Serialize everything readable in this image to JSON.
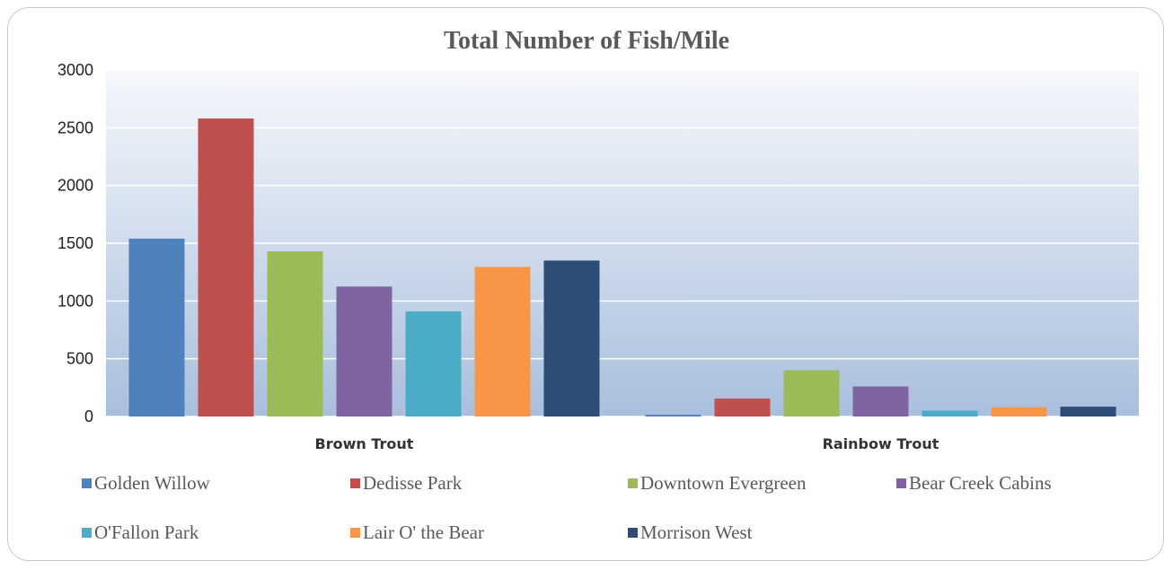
{
  "chart_data": {
    "type": "bar",
    "title": "Total Number of Fish/Mile",
    "xlabel": "",
    "ylabel": "",
    "categories": [
      "Brown Trout",
      "Rainbow Trout"
    ],
    "ylim": [
      0,
      3000
    ],
    "yticks": [
      0,
      500,
      1000,
      1500,
      2000,
      2500,
      3000
    ],
    "grid": true,
    "legend_position": "bottom",
    "series": [
      {
        "name": "Golden Willow",
        "color": "#4f81bd",
        "values": [
          1540,
          15
        ]
      },
      {
        "name": "Dedisse Park",
        "color": "#c0504d",
        "values": [
          2580,
          155
        ]
      },
      {
        "name": "Downtown Evergreen",
        "color": "#9bbb59",
        "values": [
          1430,
          400
        ]
      },
      {
        "name": "Bear Creek Cabins",
        "color": "#8064a2",
        "values": [
          1125,
          260
        ]
      },
      {
        "name": "O'Fallon Park",
        "color": "#4bacc6",
        "values": [
          910,
          50
        ]
      },
      {
        "name": "Lair O' the Bear",
        "color": "#f79646",
        "values": [
          1295,
          80
        ]
      },
      {
        "name": "Morrison West",
        "color": "#2c4d75",
        "values": [
          1350,
          85
        ]
      }
    ]
  }
}
